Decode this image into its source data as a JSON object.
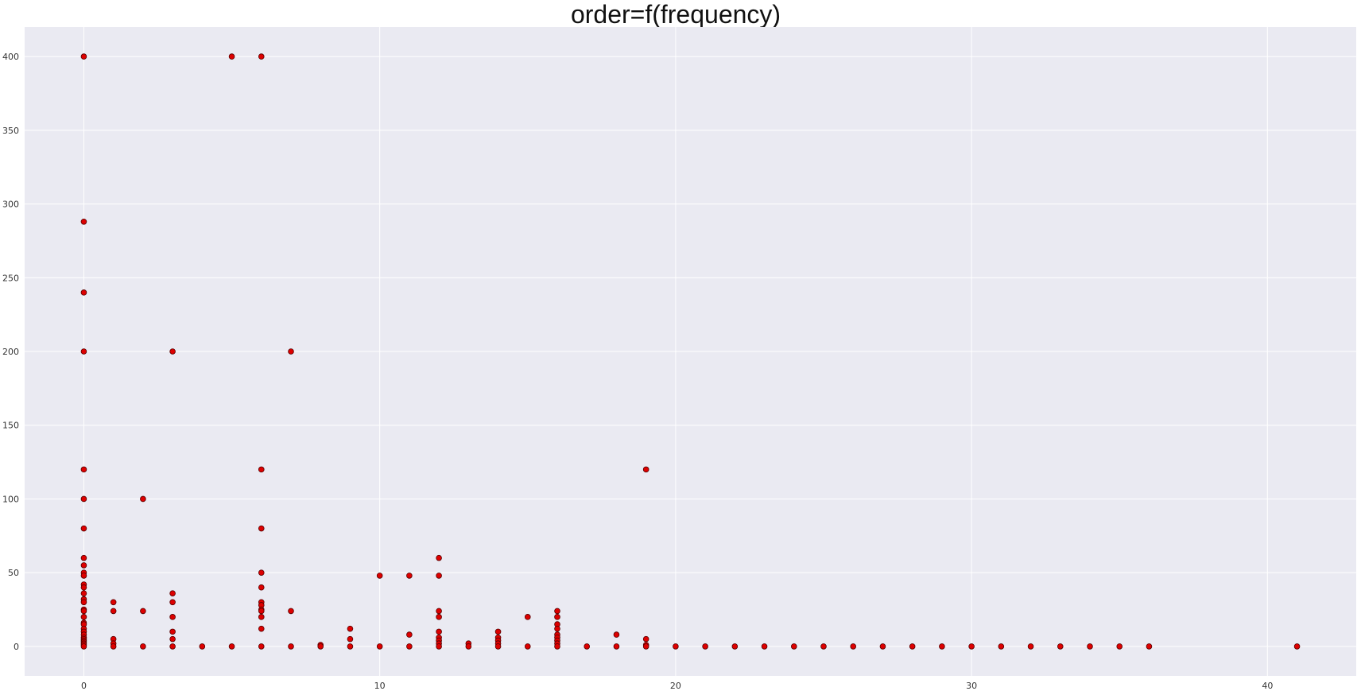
{
  "chart_data": {
    "type": "scatter",
    "title": "order=f(frequency)",
    "xlabel": "",
    "ylabel": "",
    "xlim": [
      -2,
      43
    ],
    "ylim": [
      -20,
      420
    ],
    "xticks": [
      0,
      10,
      20,
      30,
      40
    ],
    "yticks": [
      0,
      50,
      100,
      150,
      200,
      250,
      300,
      350,
      400
    ],
    "grid": true,
    "legend": "none",
    "colors": {
      "background": "#EAEAF2",
      "grid": "#FFFFFF",
      "marker_fill": "#DD0000",
      "marker_edge": "#550000"
    },
    "series": [
      {
        "points": [
          [
            0,
            400
          ],
          [
            0,
            288
          ],
          [
            0,
            240
          ],
          [
            0,
            200
          ],
          [
            0,
            120
          ],
          [
            0,
            100
          ],
          [
            0,
            80
          ],
          [
            0,
            60
          ],
          [
            0,
            55
          ],
          [
            0,
            50
          ],
          [
            0,
            48
          ],
          [
            0,
            42
          ],
          [
            0,
            40
          ],
          [
            0,
            36
          ],
          [
            0,
            32
          ],
          [
            0,
            30
          ],
          [
            0,
            25
          ],
          [
            0,
            24
          ],
          [
            0,
            20
          ],
          [
            0,
            16
          ],
          [
            0,
            15
          ],
          [
            0,
            12
          ],
          [
            0,
            10
          ],
          [
            0,
            8
          ],
          [
            0,
            6
          ],
          [
            0,
            5
          ],
          [
            0,
            4
          ],
          [
            0,
            3
          ],
          [
            0,
            2
          ],
          [
            0,
            1
          ],
          [
            0,
            0
          ],
          [
            1,
            30
          ],
          [
            1,
            24
          ],
          [
            1,
            5
          ],
          [
            1,
            2
          ],
          [
            1,
            0
          ],
          [
            2,
            100
          ],
          [
            2,
            24
          ],
          [
            2,
            0
          ],
          [
            3,
            200
          ],
          [
            3,
            36
          ],
          [
            3,
            30
          ],
          [
            3,
            20
          ],
          [
            3,
            10
          ],
          [
            3,
            5
          ],
          [
            3,
            0
          ],
          [
            4,
            0
          ],
          [
            5,
            400
          ],
          [
            5,
            0
          ],
          [
            6,
            400
          ],
          [
            6,
            120
          ],
          [
            6,
            80
          ],
          [
            6,
            50
          ],
          [
            6,
            40
          ],
          [
            6,
            30
          ],
          [
            6,
            28
          ],
          [
            6,
            25
          ],
          [
            6,
            24
          ],
          [
            6,
            20
          ],
          [
            6,
            12
          ],
          [
            6,
            0
          ],
          [
            7,
            200
          ],
          [
            7,
            24
          ],
          [
            7,
            0
          ],
          [
            8,
            1
          ],
          [
            8,
            0
          ],
          [
            9,
            12
          ],
          [
            9,
            5
          ],
          [
            9,
            0
          ],
          [
            10,
            48
          ],
          [
            10,
            0
          ],
          [
            11,
            48
          ],
          [
            11,
            8
          ],
          [
            11,
            0
          ],
          [
            12,
            60
          ],
          [
            12,
            48
          ],
          [
            12,
            24
          ],
          [
            12,
            20
          ],
          [
            12,
            10
          ],
          [
            12,
            6
          ],
          [
            12,
            4
          ],
          [
            12,
            2
          ],
          [
            12,
            0
          ],
          [
            13,
            2
          ],
          [
            13,
            0
          ],
          [
            14,
            10
          ],
          [
            14,
            6
          ],
          [
            14,
            4
          ],
          [
            14,
            2
          ],
          [
            14,
            0
          ],
          [
            15,
            20
          ],
          [
            15,
            0
          ],
          [
            16,
            24
          ],
          [
            16,
            20
          ],
          [
            16,
            15
          ],
          [
            16,
            12
          ],
          [
            16,
            8
          ],
          [
            16,
            6
          ],
          [
            16,
            4
          ],
          [
            16,
            2
          ],
          [
            16,
            0
          ],
          [
            17,
            0
          ],
          [
            18,
            8
          ],
          [
            18,
            0
          ],
          [
            19,
            120
          ],
          [
            19,
            5
          ],
          [
            19,
            1
          ],
          [
            19,
            0
          ],
          [
            20,
            0
          ],
          [
            21,
            0
          ],
          [
            22,
            0
          ],
          [
            23,
            0
          ],
          [
            24,
            0
          ],
          [
            25,
            0
          ],
          [
            26,
            0
          ],
          [
            27,
            0
          ],
          [
            28,
            0
          ],
          [
            29,
            0
          ],
          [
            30,
            0
          ],
          [
            31,
            0
          ],
          [
            32,
            0
          ],
          [
            33,
            0
          ],
          [
            34,
            0
          ],
          [
            35,
            0
          ],
          [
            36,
            0
          ],
          [
            41,
            0
          ]
        ]
      }
    ]
  }
}
